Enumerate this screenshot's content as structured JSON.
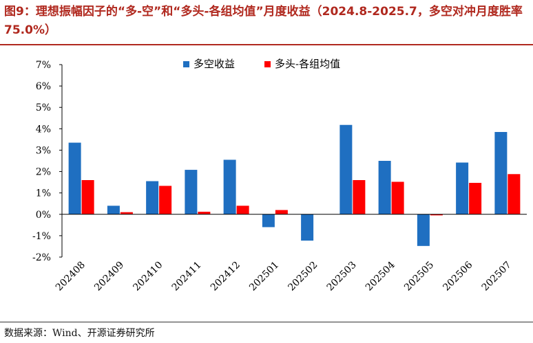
{
  "figure": {
    "title": "图9：理想振幅因子的“多-空”和“多头-各组均值”月度收益（2024.8-2025.7，多空对冲月度胜率 75.0%）",
    "source": "数据来源：Wind、开源证券研究所"
  },
  "chart_data": {
    "type": "bar",
    "categories": [
      "202408",
      "202409",
      "202410",
      "202411",
      "202412",
      "202501",
      "202502",
      "202503",
      "202504",
      "202505",
      "202506",
      "202507"
    ],
    "series": [
      {
        "name": "多空收益",
        "color": "#1f6fc1",
        "values": [
          3.35,
          0.4,
          1.55,
          2.08,
          2.55,
          -0.6,
          -1.23,
          4.18,
          2.5,
          -1.48,
          2.42,
          3.85
        ]
      },
      {
        "name": "多头-各组均值",
        "color": "#ff0000",
        "values": [
          1.6,
          0.1,
          1.33,
          0.12,
          0.4,
          0.2,
          0.0,
          1.6,
          1.52,
          -0.05,
          1.47,
          1.88
        ]
      }
    ],
    "ylim": [
      -2,
      7
    ],
    "yticks": [
      -2,
      -1,
      0,
      1,
      2,
      3,
      4,
      5,
      6,
      7
    ],
    "ytick_labels": [
      "-2%",
      "-1%",
      "0%",
      "1%",
      "2%",
      "3%",
      "4%",
      "5%",
      "6%",
      "7%"
    ],
    "legend_position": "top-center",
    "grid": false,
    "xlabel": "",
    "ylabel": ""
  }
}
